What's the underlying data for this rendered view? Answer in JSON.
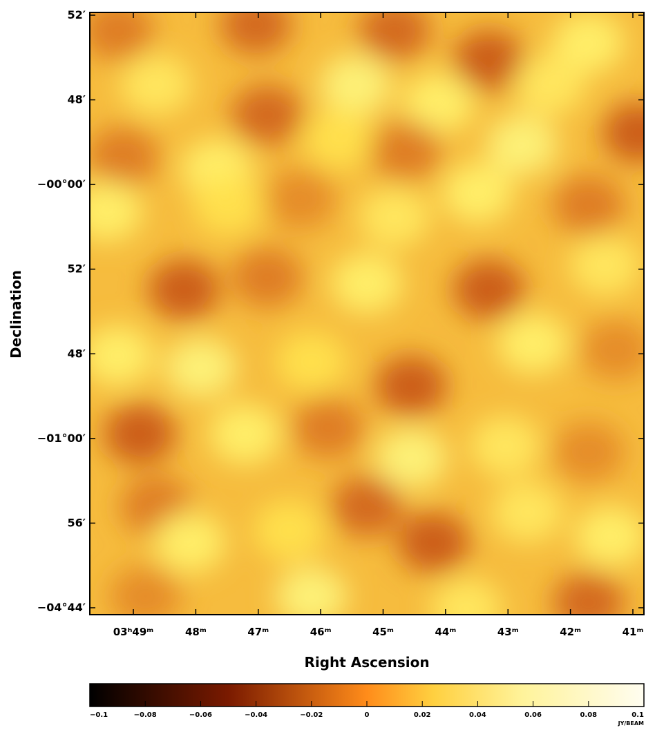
{
  "chart_data": {
    "type": "heatmap",
    "title": "",
    "xlabel": "Right Ascension",
    "ylabel": "Declination",
    "x_ticks": [
      "03ʰ49ᵐ",
      "48ᵐ",
      "47ᵐ",
      "46ᵐ",
      "45ᵐ",
      "44ᵐ",
      "43ᵐ",
      "42ᵐ",
      "41ᵐ"
    ],
    "y_ticks": [
      "52′",
      "48′",
      "−00°00′",
      "52′",
      "48′",
      "−01°00′",
      "56′",
      "−04°44′"
    ],
    "colorbar": {
      "colormap": "afmhot",
      "min": -0.1,
      "max": 0.1,
      "tick_labels": [
        "−0.1",
        "−0.08",
        "−0.06",
        "−0.04",
        "−0.02",
        "0",
        "0.02",
        "0.04",
        "0.06",
        "0.08",
        "0.1"
      ],
      "unit_label": "JY/BEAM"
    },
    "field_value_range": [
      -0.04,
      0.05
    ],
    "colors": {
      "dark": "#1a0000",
      "mid": "#e07a10",
      "light": "#fff8e0"
    }
  }
}
